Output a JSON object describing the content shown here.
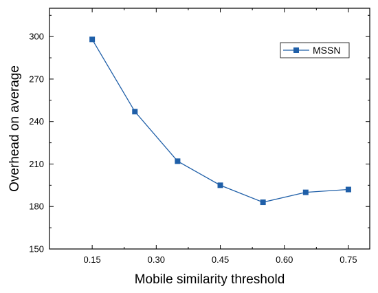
{
  "chart_data": {
    "type": "line",
    "xlabel": "Mobile similarity threshold",
    "ylabel": "Overhead on  average",
    "x": [
      0.15,
      0.25,
      0.35,
      0.45,
      0.55,
      0.65,
      0.75
    ],
    "series": [
      {
        "name": "MSSN",
        "values": [
          298,
          247,
          212,
          195,
          183,
          190,
          192
        ],
        "color": "#1f5fa8",
        "marker": "square"
      }
    ],
    "xlim": [
      0.05,
      0.8
    ],
    "ylim": [
      150,
      320
    ],
    "xticks": [
      "0.15",
      "0.30",
      "0.45",
      "0.60",
      "0.75"
    ],
    "yticks": [
      "150",
      "180",
      "210",
      "240",
      "270",
      "300"
    ],
    "legend_position": "top-right",
    "grid": false
  }
}
